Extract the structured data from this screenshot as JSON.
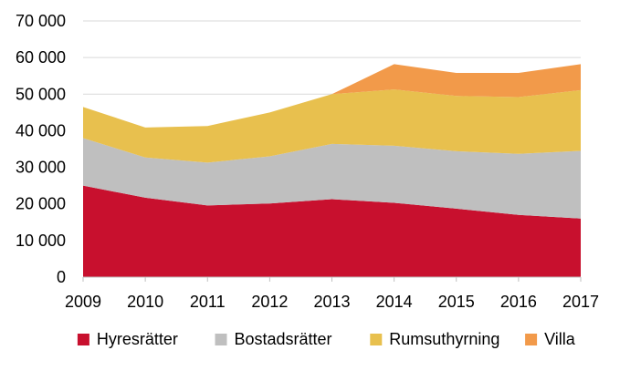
{
  "chart_data": {
    "type": "area",
    "stacked": true,
    "x": [
      "2009",
      "2010",
      "2011",
      "2012",
      "2013",
      "2014",
      "2015",
      "2016",
      "2017"
    ],
    "ylim": [
      0,
      70000
    ],
    "y_ticks": [
      0,
      10000,
      20000,
      30000,
      40000,
      50000,
      60000,
      70000
    ],
    "y_tick_labels": [
      "0",
      "10 000",
      "20 000",
      "30 000",
      "40 000",
      "50 000",
      "60 000",
      "70 000"
    ],
    "x_tick_labels": [
      "2009",
      "2010",
      "2011",
      "2012",
      "2013",
      "2014",
      "2015",
      "2016",
      "2017"
    ],
    "grid": "horizontal",
    "legend_position": "bottom",
    "series": [
      {
        "name": "Hyresrätter",
        "color": "#C8102E",
        "values": [
          25000,
          21700,
          19600,
          20100,
          21300,
          20300,
          18700,
          17000,
          16000
        ]
      },
      {
        "name": "Bostadsrätter",
        "color": "#BFBFBF",
        "values": [
          13000,
          11000,
          11700,
          12900,
          15100,
          15600,
          15700,
          16700,
          18500
        ]
      },
      {
        "name": "Rumsuthyrning",
        "color": "#E8C04E",
        "values": [
          8500,
          8200,
          10000,
          12000,
          13600,
          15400,
          15100,
          15500,
          16600
        ]
      },
      {
        "name": "Villa",
        "color": "#F29A4A",
        "values": [
          0,
          0,
          0,
          0,
          0,
          6900,
          6300,
          6600,
          7100
        ]
      }
    ]
  }
}
